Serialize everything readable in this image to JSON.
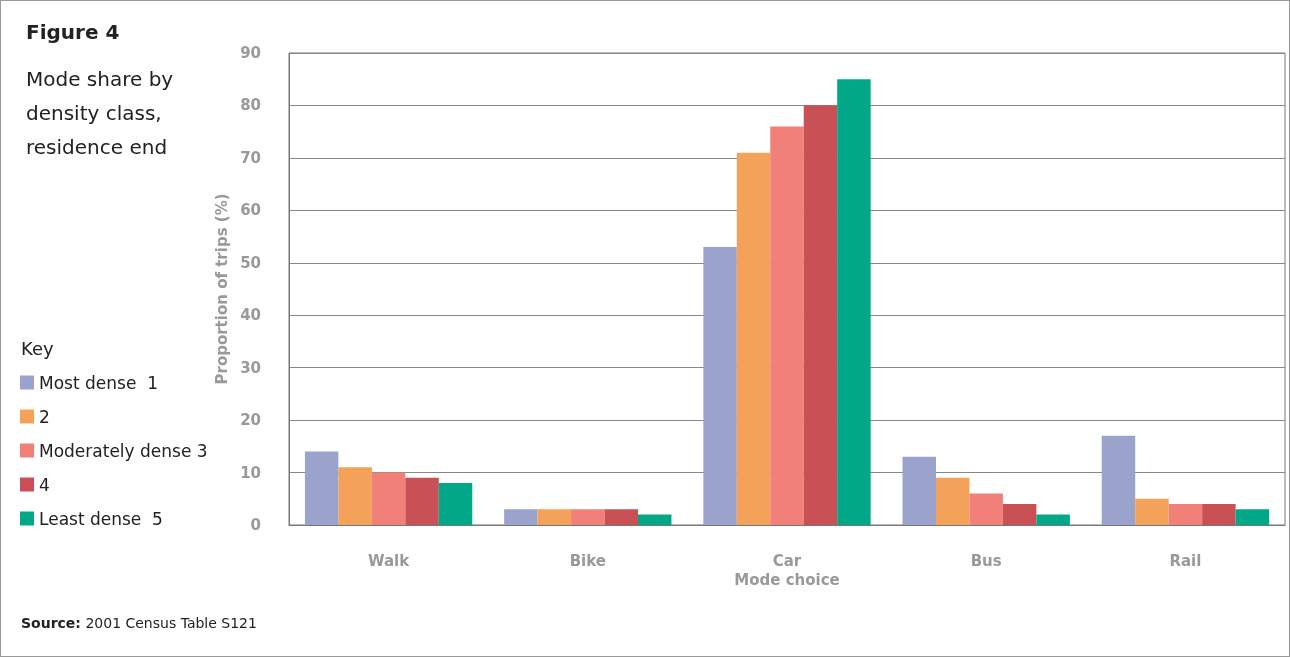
{
  "chart_data": {
    "type": "bar",
    "title": "Figure 4",
    "subtitle": "Mode share by density class, residence end",
    "xlabel": "Mode choice",
    "ylabel": "Proportion of trips (%)",
    "legend_title": "Key",
    "annotations": [
      "Source: 2001 Census Table S121"
    ],
    "categories": [
      "Walk",
      "Bike",
      "Car",
      "Bus",
      "Rail"
    ],
    "series": [
      {
        "name": "Most dense  1",
        "color": "#9aa3cc",
        "values": [
          14,
          3,
          53,
          13,
          17
        ]
      },
      {
        "name": "2",
        "color": "#f4a259",
        "values": [
          11,
          3,
          71,
          9,
          5
        ]
      },
      {
        "name": "Moderately dense 3",
        "color": "#f08078",
        "values": [
          10,
          3,
          76,
          6,
          4
        ]
      },
      {
        "name": "4",
        "color": "#c95155",
        "values": [
          9,
          3,
          80,
          4,
          4
        ]
      },
      {
        "name": "Least dense  5",
        "color": "#00a887",
        "values": [
          8,
          2,
          85,
          2,
          3
        ]
      }
    ],
    "ylim": [
      0,
      90
    ],
    "yticks": [
      0,
      10,
      20,
      30,
      40,
      50,
      60,
      70,
      80,
      90
    ],
    "grid": "y",
    "legend": "left"
  }
}
